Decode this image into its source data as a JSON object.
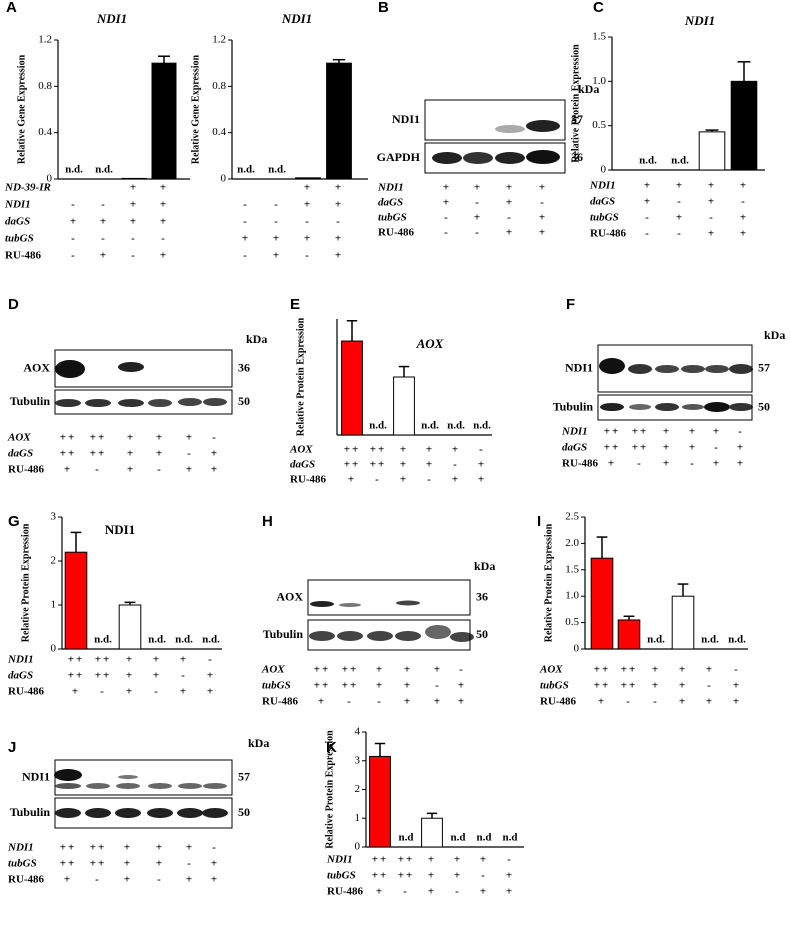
{
  "chart_data": [
    {
      "type": "bar",
      "panel": "A",
      "title": "NDI1",
      "ylabel": "Relative Gene Expression",
      "ylim": [
        0,
        1.2
      ],
      "yticks": [
        0,
        0.4,
        0.8,
        1.2
      ],
      "values": [
        null,
        null,
        0.005,
        1.0
      ],
      "errors": [
        null,
        null,
        null,
        0.06
      ],
      "value_labels": [
        "n.d.",
        "n.d.",
        null,
        null
      ],
      "colors": [
        "#ffffff",
        "#ffffff",
        "#000000",
        "#000000"
      ],
      "conditions": [
        {
          "label": "ND-39-IR",
          "values": [
            null,
            null,
            "+",
            "+"
          ]
        },
        {
          "label": "NDI1",
          "values": [
            "-",
            "-",
            "+",
            "+"
          ]
        },
        {
          "label": "daGS",
          "values": [
            "+",
            "+",
            "+",
            "+"
          ]
        },
        {
          "label": "tubGS",
          "values": [
            "-",
            "-",
            "-",
            "-"
          ]
        },
        {
          "label": "RU-486",
          "values": [
            "-",
            "+",
            "-",
            "+"
          ]
        }
      ]
    },
    {
      "type": "bar",
      "title": "NDI1",
      "ylabel": "Relative Gene Expression",
      "ylim": [
        0,
        1.2
      ],
      "yticks": [
        0,
        0.4,
        0.8,
        1.2
      ],
      "values": [
        null,
        null,
        0.01,
        1.0
      ],
      "errors": [
        null,
        null,
        null,
        0.03
      ],
      "value_labels": [
        "n.d.",
        "n.d.",
        null,
        null
      ],
      "colors": [
        "#ffffff",
        "#ffffff",
        "#000000",
        "#000000"
      ],
      "conditions": [
        {
          "label": null,
          "values": [
            null,
            null,
            "+",
            "+"
          ]
        },
        {
          "label": null,
          "values": [
            "-",
            "-",
            "+",
            "+"
          ]
        },
        {
          "label": null,
          "values": [
            "-",
            "-",
            "-",
            "-"
          ]
        },
        {
          "label": null,
          "values": [
            "+",
            "+",
            "+",
            "+"
          ]
        },
        {
          "label": null,
          "values": [
            "-",
            "+",
            "-",
            "+"
          ]
        }
      ]
    },
    {
      "type": "bar",
      "panel": "C",
      "title": "NDI1",
      "ylabel": "Relative Protein Expression",
      "ylim": [
        0,
        1.5
      ],
      "yticks": [
        0,
        0.5,
        {
          "value": 1,
          "label": "1.0"
        },
        1.5
      ],
      "values": [
        null,
        null,
        0.43,
        1.0
      ],
      "errors": [
        null,
        null,
        0.02,
        0.22
      ],
      "value_labels": [
        "n.d.",
        "n.d.",
        null,
        null
      ],
      "colors": [
        "#ffffff",
        "#ffffff",
        "#ffffff",
        "#000000"
      ],
      "conditions": [
        {
          "label": "NDI1",
          "values": [
            "+",
            "+",
            "+",
            "+"
          ]
        },
        {
          "label": "daGS",
          "values": [
            "+",
            "-",
            "+",
            "-"
          ]
        },
        {
          "label": "tubGS",
          "values": [
            "-",
            "+",
            "-",
            "+"
          ]
        },
        {
          "label": "RU-486",
          "values": [
            "-",
            "-",
            "+",
            "+"
          ]
        }
      ]
    },
    {
      "type": "bar",
      "panel": "E",
      "title": "AOX",
      "ylabel": "Relative Protein Expression",
      "ylim": [
        0,
        2
      ],
      "values": [
        1.62,
        null,
        1.0,
        null,
        null,
        null
      ],
      "errors": [
        0.35,
        null,
        0.18,
        null,
        null,
        null
      ],
      "value_labels": [
        null,
        "n.d.",
        null,
        "n.d.",
        "n.d.",
        "n.d."
      ],
      "colors": [
        "#ff0000",
        "#ffffff",
        "#ffffff",
        "#ffffff",
        "#ffffff",
        "#ffffff"
      ],
      "conditions": [
        {
          "label": "AOX",
          "values": [
            "++",
            "++",
            "+",
            "+",
            "+",
            "-"
          ]
        },
        {
          "label": "daGS",
          "values": [
            "++",
            "++",
            "+",
            "+",
            "-",
            "+"
          ]
        },
        {
          "label": "RU-486",
          "values": [
            "+",
            "-",
            "+",
            "-",
            "+",
            "+"
          ]
        }
      ]
    },
    {
      "type": "bar",
      "panel": "G",
      "title": "NDI1",
      "ylabel": "Relative Protein Expression",
      "ylim": [
        0,
        3
      ],
      "yticks": [
        0,
        1,
        2,
        3
      ],
      "values": [
        2.2,
        null,
        1.0,
        null,
        null,
        null
      ],
      "errors": [
        0.45,
        null,
        0.06,
        null,
        null,
        null
      ],
      "value_labels": [
        null,
        "n.d.",
        null,
        "n.d.",
        "n.d.",
        "n.d."
      ],
      "colors": [
        "#ff0000",
        "#ffffff",
        "#ffffff",
        "#ffffff",
        "#ffffff",
        "#ffffff"
      ],
      "conditions": [
        {
          "label": "NDI1",
          "values": [
            "++",
            "++",
            "+",
            "+",
            "+",
            "-"
          ]
        },
        {
          "label": "daGS",
          "values": [
            "++",
            "++",
            "+",
            "+",
            "-",
            "+"
          ]
        },
        {
          "label": "RU-486",
          "values": [
            "+",
            "-",
            "+",
            "-",
            "+",
            "+"
          ]
        }
      ]
    },
    {
      "type": "bar",
      "panel": "I",
      "ylabel": "Relative Protein Expression",
      "ylim": [
        0,
        2.5
      ],
      "yticks": [
        0,
        0.5,
        {
          "value": 1,
          "label": "1.0"
        },
        1.5,
        {
          "value": 2,
          "label": "2.0"
        },
        2.5
      ],
      "values": [
        1.72,
        0.55,
        null,
        1.0,
        null,
        null
      ],
      "errors": [
        0.4,
        0.07,
        null,
        0.23,
        null,
        null
      ],
      "value_labels": [
        null,
        null,
        "n.d.",
        null,
        "n.d.",
        "n.d."
      ],
      "colors": [
        "#ff0000",
        "#ff0000",
        "#ffffff",
        "#ffffff",
        "#ffffff",
        "#ffffff"
      ],
      "conditions": [
        {
          "label": "AOX",
          "values": [
            "++",
            "++",
            "+",
            "+",
            "+",
            "-"
          ]
        },
        {
          "label": "tubGS",
          "values": [
            "++",
            "++",
            "+",
            "+",
            "-",
            "+"
          ]
        },
        {
          "label": "RU-486",
          "values": [
            "+",
            "-",
            "-",
            "+",
            "+",
            "+"
          ]
        }
      ]
    },
    {
      "type": "bar",
      "panel": "K",
      "ylabel": "Relative Protein Expression",
      "ylim": [
        0,
        4
      ],
      "yticks": [
        0,
        1,
        2,
        3,
        4
      ],
      "values": [
        3.15,
        null,
        1.0,
        null,
        null,
        null
      ],
      "errors": [
        0.45,
        null,
        0.17,
        null,
        null,
        null
      ],
      "value_labels": [
        null,
        "n.d",
        null,
        "n.d",
        "n.d",
        "n.d"
      ],
      "colors": [
        "#ff0000",
        "#ffffff",
        "#ffffff",
        "#ffffff",
        "#ffffff",
        "#ffffff"
      ],
      "conditions": [
        {
          "label": "NDI1",
          "values": [
            "++",
            "++",
            "+",
            "+",
            "+",
            "-"
          ]
        },
        {
          "label": "tubGS",
          "values": [
            "++",
            "++",
            "+",
            "+",
            "-",
            "+"
          ]
        },
        {
          "label": "RU-486",
          "values": [
            "+",
            "-",
            "+",
            "-",
            "+",
            "+"
          ]
        }
      ]
    }
  ],
  "blots": [
    {
      "panel": "B",
      "unit": "kDa",
      "rows": [
        {
          "label": "NDI1",
          "kda": 57
        },
        {
          "label": "GAPDH",
          "kda": 36
        }
      ],
      "conditions": [
        {
          "label": "NDI1",
          "values": [
            "+",
            "+",
            "+",
            "+"
          ]
        },
        {
          "label": "daGS",
          "values": [
            "+",
            "-",
            "+",
            "-"
          ]
        },
        {
          "label": "tubGS",
          "values": [
            "-",
            "+",
            "-",
            "+"
          ]
        },
        {
          "label": "RU-486",
          "values": [
            "-",
            "-",
            "+",
            "+"
          ]
        }
      ]
    },
    {
      "panel": "D",
      "unit": "kDa",
      "rows": [
        {
          "label": "AOX",
          "kda": 36
        },
        {
          "label": "Tubulin",
          "kda": 50
        }
      ],
      "conditions": [
        {
          "label": "AOX",
          "values": [
            "++",
            "++",
            "+",
            "+",
            "+",
            "-"
          ]
        },
        {
          "label": "daGS",
          "values": [
            "++",
            "++",
            "+",
            "+",
            "-",
            "+"
          ]
        },
        {
          "label": "RU-486",
          "values": [
            "+",
            "-",
            "+",
            "-",
            "+",
            "+"
          ]
        }
      ]
    },
    {
      "panel": "F",
      "unit": "kDa",
      "rows": [
        {
          "label": "NDI1",
          "kda": 57
        },
        {
          "label": "Tubulin",
          "kda": 50
        }
      ],
      "conditions": [
        {
          "label": "NDI1",
          "values": [
            "++",
            "++",
            "+",
            "+",
            "+",
            "-"
          ]
        },
        {
          "label": "daGS",
          "values": [
            "++",
            "++",
            "+",
            "+",
            "-",
            "+"
          ]
        },
        {
          "label": "RU-486",
          "values": [
            "+",
            "-",
            "+",
            "-",
            "+",
            "+"
          ]
        }
      ]
    },
    {
      "panel": "H",
      "unit": "kDa",
      "rows": [
        {
          "label": "AOX",
          "kda": 36
        },
        {
          "label": "Tubulin",
          "kda": 50
        }
      ],
      "conditions": [
        {
          "label": "AOX",
          "values": [
            "++",
            "++",
            "+",
            "+",
            "+",
            "-"
          ]
        },
        {
          "label": "tubGS",
          "values": [
            "++",
            "++",
            "+",
            "+",
            "-",
            "+"
          ]
        },
        {
          "label": "RU-486",
          "values": [
            "+",
            "-",
            "-",
            "+",
            "+",
            "+"
          ]
        }
      ]
    },
    {
      "panel": "J",
      "unit": "kDa",
      "rows": [
        {
          "label": "NDI1",
          "kda": 57
        },
        {
          "label": "Tubulin",
          "kda": 50
        }
      ],
      "conditions": [
        {
          "label": "NDI1",
          "values": [
            "++",
            "++",
            "+",
            "+",
            "+",
            "-"
          ]
        },
        {
          "label": "tubGS",
          "values": [
            "++",
            "++",
            "+",
            "+",
            "-",
            "+"
          ]
        },
        {
          "label": "RU-486",
          "values": [
            "+",
            "-",
            "+",
            "-",
            "+",
            "+"
          ]
        }
      ]
    }
  ]
}
